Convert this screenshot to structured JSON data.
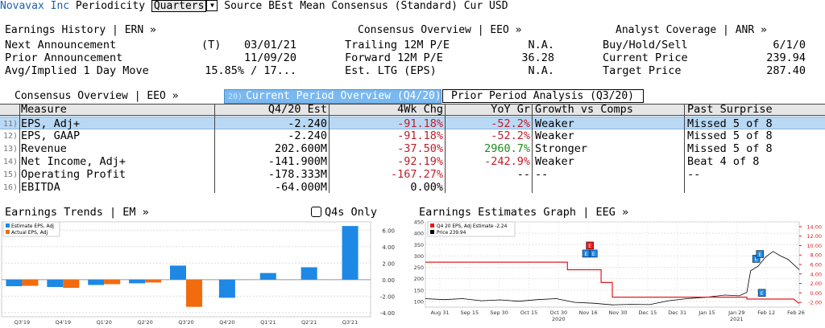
{
  "header": {
    "company": "Novavax Inc",
    "periodicity_label": "Periodicity",
    "periodicity_value": "Quarters",
    "source_label": "Source",
    "source_value": "BEst Mean Consensus (Standard)",
    "currency_label": "Cur",
    "currency_value": "USD"
  },
  "earnings_history": {
    "title": "Earnings History | ERN »",
    "rows": [
      {
        "label": "Next Announcement",
        "flag": "(T)",
        "value": "03/01/21"
      },
      {
        "label": "Prior Announcement",
        "flag": "",
        "value": "11/09/20"
      },
      {
        "label": "Avg/Implied 1 Day Move",
        "flag": "",
        "value": "15.85% / 17..."
      }
    ]
  },
  "consensus_overview_top": {
    "title": "Consensus Overview | EEO »",
    "rows": [
      {
        "label": "Trailing 12M P/E",
        "value": "N.A."
      },
      {
        "label": "Forward 12M P/E",
        "value": "36.28"
      },
      {
        "label": "Est. LTG (EPS)",
        "value": "N.A."
      }
    ]
  },
  "analyst_coverage": {
    "title": "Analyst Coverage | ANR »",
    "rows": [
      {
        "label": "Buy/Hold/Sell",
        "value": "6/1/0"
      },
      {
        "label": "Current Price",
        "value": "239.94"
      },
      {
        "label": "Target Price",
        "value": "287.40"
      }
    ]
  },
  "consensus_table": {
    "title": "Consensus Overview | EEO »",
    "tab_active_num": "20)",
    "tab_active": "Current Period Overview (Q4/20)",
    "tab_inactive": "Prior Period Analysis (Q3/20)",
    "columns": [
      "Measure",
      "Q4/20 Est",
      "4Wk Chg",
      "YoY Gr",
      "Growth vs Comps",
      "Past Surprise"
    ],
    "rows": [
      {
        "num": "11)",
        "measure": "EPS, Adj+",
        "est": "-2.240",
        "chg": "-91.18%",
        "yoy": "-52.2%",
        "growth": "Weaker",
        "surprise": "Missed 5 of 8"
      },
      {
        "num": "12)",
        "measure": "EPS, GAAP",
        "est": "-2.240",
        "chg": "-91.18%",
        "yoy": "-52.2%",
        "growth": "Weaker",
        "surprise": "Missed 5 of 8"
      },
      {
        "num": "13)",
        "measure": "Revenue",
        "est": "202.600M",
        "chg": "-37.50%",
        "yoy": "2960.7%",
        "growth": "Stronger",
        "surprise": "Missed 5 of 8"
      },
      {
        "num": "14)",
        "measure": "Net Income, Adj+",
        "est": "-141.900M",
        "chg": "-92.19%",
        "yoy": "-242.9%",
        "growth": "Weaker",
        "surprise": "Beat 4 of 8"
      },
      {
        "num": "15)",
        "measure": "Operating Profit",
        "est": "-178.333M",
        "chg": "-167.27%",
        "yoy": "--",
        "growth": "--",
        "surprise": "--"
      },
      {
        "num": "16)",
        "measure": "EBITDA",
        "est": "-64.000M",
        "chg": "0.00%",
        "yoy": "",
        "growth": "",
        "surprise": ""
      }
    ]
  },
  "earnings_trends": {
    "title": "Earnings Trends | EM »",
    "q4s_only_label": "Q4s Only"
  },
  "earnings_estimates_graph": {
    "title": "Earnings Estimates Graph | EEG »"
  },
  "colors": {
    "estimate": "#1e88e5",
    "actual": "#f26b0f",
    "price_line": "#000000",
    "estimate_line": "#e41a1c",
    "positive": "#1e8a1e",
    "negative": "#c01c28",
    "selected_row": "#b9d8f4"
  },
  "chart_data": [
    {
      "type": "bar",
      "legend": [
        "Estimate EPS, Adj",
        "Actual EPS, Adj"
      ],
      "categories": [
        "Q3'19",
        "Q4'19",
        "Q1'20",
        "Q2'20",
        "Q3'20",
        "Q4'20",
        "Q1'21",
        "Q2'21",
        "Q3'21"
      ],
      "series": [
        {
          "name": "Estimate EPS, Adj",
          "values": [
            -0.8,
            -0.9,
            -0.65,
            -0.45,
            1.7,
            -2.2,
            0.8,
            1.5,
            6.5
          ]
        },
        {
          "name": "Actual EPS, Adj",
          "values": [
            -0.75,
            -1.0,
            -0.55,
            -0.35,
            -3.3,
            null,
            null,
            null,
            null
          ]
        }
      ],
      "y_ticks": [
        "6.00",
        "4.00",
        "2.00",
        "0.00",
        "-2.00",
        "-4.00"
      ],
      "ylim": [
        -4.5,
        7
      ]
    },
    {
      "type": "line",
      "legend": [
        "Q4 20 EPS, Adj Estimate -2.24",
        "Price 239.94"
      ],
      "x_ticks": [
        "Aug 31",
        "Sep 15",
        "Sep 30",
        "Oct 15",
        "Oct 30",
        "Nov 16",
        "Nov 30",
        "Dec 15",
        "Dec 31",
        "Jan 15",
        "Jan 29",
        "Feb 12",
        "Feb 26"
      ],
      "x_year_labels": [
        {
          "label": "2020",
          "at": "Oct 30"
        },
        {
          "label": "2021",
          "at": "Jan 29"
        }
      ],
      "left_axis_ticks": [
        "450",
        "400",
        "350",
        "300",
        "250",
        "200",
        "150",
        "100"
      ],
      "right_axis_ticks": [
        "14.00",
        "12.00",
        "10.00",
        "8.00",
        "6.00",
        "4.00",
        "2.00",
        "0.00",
        "-2.00"
      ],
      "estimate_series": [
        {
          "t": 0,
          "v": 6.5
        },
        {
          "t": 0.38,
          "v": 6.5
        },
        {
          "t": 0.38,
          "v": 4.9
        },
        {
          "t": 0.47,
          "v": 4.9
        },
        {
          "t": 0.47,
          "v": 2.2
        },
        {
          "t": 0.5,
          "v": 2.2
        },
        {
          "t": 0.5,
          "v": -0.9
        },
        {
          "t": 0.86,
          "v": -0.9
        },
        {
          "t": 0.86,
          "v": -1.3
        },
        {
          "t": 0.985,
          "v": -1.3
        },
        {
          "t": 1.0,
          "v": -2.24
        }
      ],
      "price_series": [
        {
          "t": 0,
          "v": 112
        },
        {
          "t": 0.05,
          "v": 108
        },
        {
          "t": 0.1,
          "v": 112
        },
        {
          "t": 0.15,
          "v": 103
        },
        {
          "t": 0.2,
          "v": 107
        },
        {
          "t": 0.25,
          "v": 101
        },
        {
          "t": 0.3,
          "v": 108
        },
        {
          "t": 0.35,
          "v": 112
        },
        {
          "t": 0.4,
          "v": 96
        },
        {
          "t": 0.45,
          "v": 92
        },
        {
          "t": 0.5,
          "v": 85
        },
        {
          "t": 0.55,
          "v": 87
        },
        {
          "t": 0.6,
          "v": 86
        },
        {
          "t": 0.65,
          "v": 103
        },
        {
          "t": 0.7,
          "v": 112
        },
        {
          "t": 0.75,
          "v": 118
        },
        {
          "t": 0.8,
          "v": 128
        },
        {
          "t": 0.84,
          "v": 125
        },
        {
          "t": 0.86,
          "v": 140
        },
        {
          "t": 0.87,
          "v": 235
        },
        {
          "t": 0.89,
          "v": 255
        },
        {
          "t": 0.91,
          "v": 295
        },
        {
          "t": 0.93,
          "v": 320
        },
        {
          "t": 0.95,
          "v": 300
        },
        {
          "t": 0.97,
          "v": 285
        },
        {
          "t": 1.0,
          "v": 240
        }
      ],
      "markers": [
        {
          "t": 0.44,
          "v": 10.0,
          "color": "#e41a1c",
          "label": "E"
        },
        {
          "t": 0.43,
          "v": 8.3,
          "color": "#1e88e5",
          "label": "E"
        },
        {
          "t": 0.45,
          "v": 8.3,
          "color": "#1e88e5",
          "label": "E"
        },
        {
          "t": 0.885,
          "v": 7.2,
          "color": "#1e88e5",
          "label": "E"
        },
        {
          "t": 0.895,
          "v": 8.2,
          "color": "#1e88e5",
          "label": "E"
        },
        {
          "t": 0.9,
          "v": 0.0,
          "color": "#1e88e5",
          "label": "E"
        }
      ]
    }
  ]
}
